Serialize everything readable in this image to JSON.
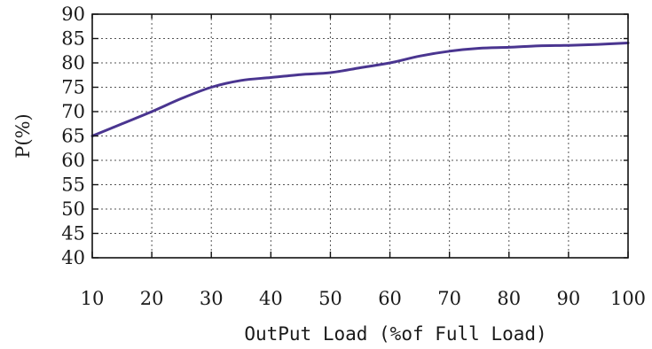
{
  "chart_data": {
    "type": "line",
    "title": "",
    "xlabel": "OutPut Load (%of Full Load)",
    "ylabel": "P(%)",
    "xlim": [
      10,
      100
    ],
    "ylim": [
      40,
      90
    ],
    "x_ticks": [
      10,
      20,
      30,
      40,
      50,
      60,
      70,
      80,
      90,
      100
    ],
    "y_ticks": [
      40,
      45,
      50,
      55,
      60,
      65,
      70,
      75,
      80,
      85,
      90
    ],
    "grid": true,
    "series": [
      {
        "color": "#4a3590",
        "x": [
          10,
          15,
          20,
          25,
          30,
          35,
          40,
          45,
          50,
          55,
          60,
          65,
          70,
          75,
          80,
          85,
          90,
          95,
          100
        ],
        "y": [
          65,
          67.5,
          70,
          72.7,
          75,
          76.4,
          77,
          77.6,
          78,
          79,
          80,
          81.4,
          82.4,
          83,
          83.2,
          83.5,
          83.6,
          83.8,
          84.1
        ]
      }
    ]
  }
}
